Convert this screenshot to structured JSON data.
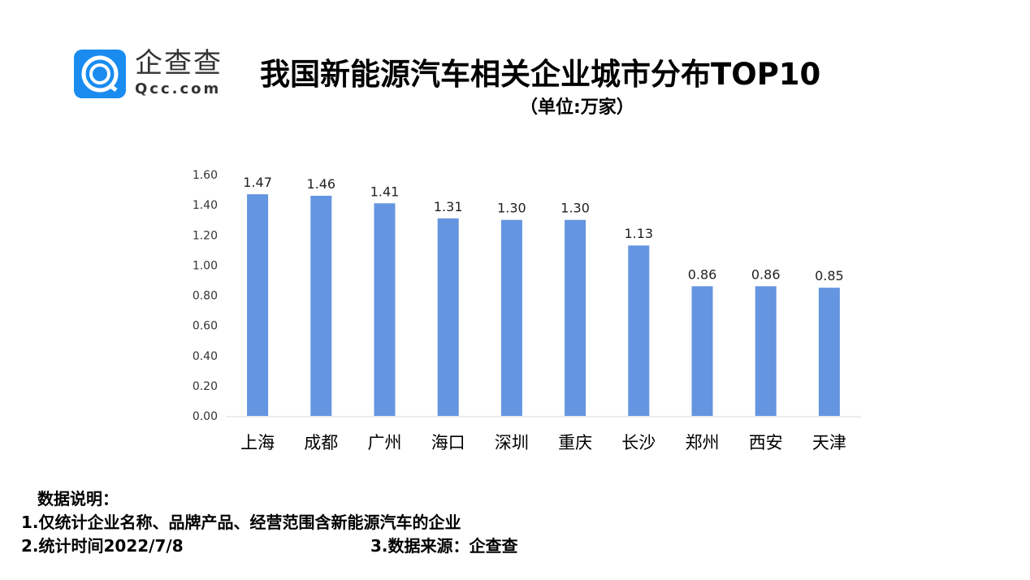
{
  "logo": {
    "name_cn": "企查查",
    "name_en": "Qcc.com",
    "brand_color": "#1a8cf0"
  },
  "chart_data": {
    "type": "bar",
    "title": "我国新能源汽车相关企业城市分布TOP10",
    "subtitle": "（单位:万家）",
    "categories": [
      "上海",
      "成都",
      "广州",
      "海口",
      "深圳",
      "重庆",
      "长沙",
      "郑州",
      "西安",
      "天津"
    ],
    "values": [
      1.47,
      1.46,
      1.41,
      1.31,
      1.3,
      1.3,
      1.13,
      0.86,
      0.86,
      0.85
    ],
    "data_labels": [
      "1.47",
      "1.46",
      "1.41",
      "1.31",
      "1.30",
      "1.30",
      "1.13",
      "0.86",
      "0.86",
      "0.85"
    ],
    "yticks": [
      "0.00",
      "0.20",
      "0.40",
      "0.60",
      "0.80",
      "1.00",
      "1.20",
      "1.40",
      "1.60"
    ],
    "ylim": [
      0,
      1.6
    ],
    "grid": false,
    "bar_color": "#6495e0"
  },
  "notes": {
    "heading": "数据说明：",
    "line1": "1.仅统计企业名称、品牌产品、经营范围含新能源汽车的企业",
    "line2": "2.统计时间2022/7/8",
    "source": "3.数据来源：企查查"
  }
}
